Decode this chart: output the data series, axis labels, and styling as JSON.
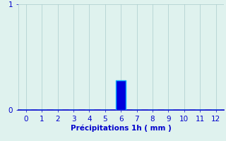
{
  "categories": [
    0,
    1,
    2,
    3,
    4,
    5,
    6,
    7,
    8,
    9,
    10,
    11,
    12
  ],
  "values": [
    0,
    0,
    0,
    0,
    0,
    0,
    0.28,
    0,
    0,
    0,
    0,
    0,
    0
  ],
  "bar_color": "#0000dd",
  "bar_edge_color": "#00aaff",
  "background_color": "#dff2ee",
  "grid_color": "#aacccc",
  "axis_color": "#0000cc",
  "tick_color": "#0000cc",
  "xlabel": "Précipitations 1h ( mm )",
  "xlabel_color": "#0000cc",
  "xlim": [
    -0.5,
    12.5
  ],
  "ylim": [
    0,
    1
  ],
  "yticks": [
    0,
    1
  ],
  "xticks": [
    0,
    1,
    2,
    3,
    4,
    5,
    6,
    7,
    8,
    9,
    10,
    11,
    12
  ],
  "fontsize": 7.5,
  "bar_width": 0.6
}
